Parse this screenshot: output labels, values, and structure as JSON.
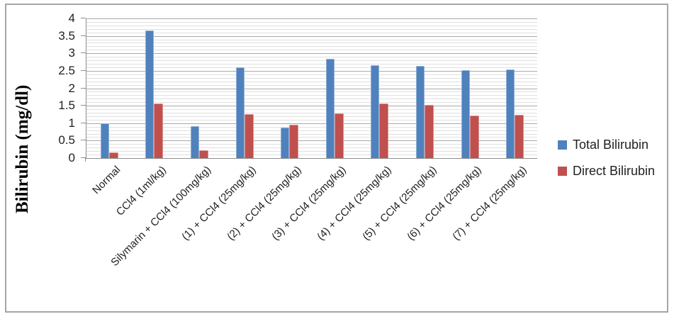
{
  "chart_data": {
    "type": "bar",
    "title": "",
    "xlabel": "",
    "ylabel": "Bilirubin (mg/dl)",
    "ylim": [
      0,
      4
    ],
    "ytick_step": 0.5,
    "minor_grid_step": 0.1,
    "ytick_labels": [
      "0",
      "0.5",
      "1",
      "1.5",
      "2",
      "2.5",
      "3",
      "3.5",
      "4"
    ],
    "grid": "horizontal, minor every 0.1, major every 0.5",
    "legend_position": "right",
    "categories": [
      "Normal",
      "CCl4 (1ml/kg)",
      "Silymarin + CCl4 (100mg/kg)",
      "(1) + CCl4 (25mg/kg)",
      "(2) + CCl4 (25mg/kg)",
      "(3) + CCl4 (25mg/kg)",
      "(4) + CCl4 (25mg/kg)",
      "(5) + CCl4 (25mg/kg)",
      "(6) + CCl4 (25mg/kg)",
      "(7) + CCl4 (25mg/kg)"
    ],
    "series": [
      {
        "name": "Total Bilirubin",
        "color": "#4F81BD",
        "values": [
          1.0,
          3.65,
          0.91,
          2.6,
          0.87,
          2.85,
          2.67,
          2.63,
          2.52,
          2.54
        ]
      },
      {
        "name": "Direct Bilirubin",
        "color": "#C0504D",
        "values": [
          0.17,
          1.57,
          0.22,
          1.26,
          0.96,
          1.27,
          1.57,
          1.53,
          1.22,
          1.23
        ]
      }
    ]
  },
  "colors": {
    "frame_border": "#a6a6a6",
    "major_grid": "#a9a9a9",
    "minor_grid": "#e0e0e0",
    "axis_line": "#8e8e8e",
    "text": "#1f1f1f"
  }
}
